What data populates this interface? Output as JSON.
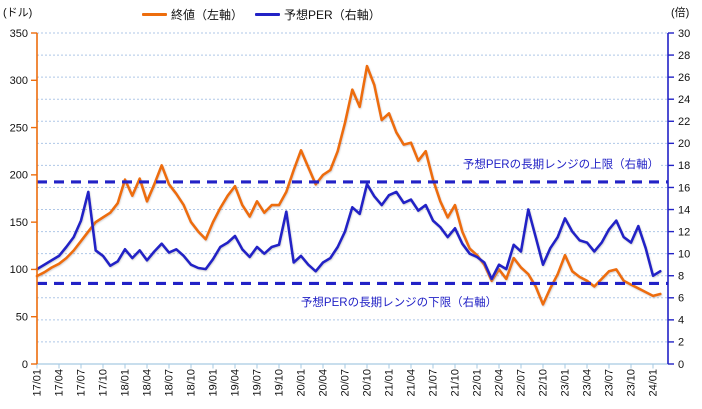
{
  "chart_data": {
    "type": "line",
    "title": "",
    "legend_position": "top",
    "grid": {
      "horizontal_every_right_units": 2,
      "style": "dotted",
      "color": "#AFC7E7"
    },
    "left_axis": {
      "unit": "(ドル)",
      "min": 0,
      "max": 350,
      "step": 50,
      "tick_labels": [
        "0",
        "50",
        "100",
        "150",
        "200",
        "250",
        "300",
        "350"
      ],
      "color": "#ED6D0D"
    },
    "right_axis": {
      "unit": "(倍)",
      "min": 0,
      "max": 30,
      "step": 2,
      "tick_labels": [
        "0",
        "2",
        "4",
        "6",
        "8",
        "10",
        "12",
        "14",
        "16",
        "18",
        "20",
        "22",
        "24",
        "26",
        "28",
        "30"
      ],
      "color": "#2222C6"
    },
    "x_tick_labels": [
      "17/01",
      "17/04",
      "17/07",
      "17/10",
      "18/01",
      "18/04",
      "18/07",
      "18/10",
      "19/01",
      "19/04",
      "19/07",
      "19/10",
      "20/01",
      "20/04",
      "20/07",
      "20/10",
      "21/01",
      "21/04",
      "21/07",
      "21/10",
      "22/01",
      "22/04",
      "22/07",
      "22/10",
      "23/01",
      "23/04",
      "23/07",
      "23/10",
      "24/01"
    ],
    "x": [
      "17/01",
      "17/02",
      "17/03",
      "17/04",
      "17/05",
      "17/06",
      "17/07",
      "17/08",
      "17/09",
      "17/10",
      "17/11",
      "17/12",
      "18/01",
      "18/02",
      "18/03",
      "18/04",
      "18/05",
      "18/06",
      "18/07",
      "18/08",
      "18/09",
      "18/10",
      "18/11",
      "18/12",
      "19/01",
      "19/02",
      "19/03",
      "19/04",
      "19/05",
      "19/06",
      "19/07",
      "19/08",
      "19/09",
      "19/10",
      "19/11",
      "19/12",
      "20/01",
      "20/02",
      "20/03",
      "20/04",
      "20/05",
      "20/06",
      "20/07",
      "20/08",
      "20/09",
      "20/10",
      "20/11",
      "20/12",
      "21/01",
      "21/02",
      "21/03",
      "21/04",
      "21/05",
      "21/06",
      "21/07",
      "21/08",
      "21/09",
      "21/10",
      "21/11",
      "21/12",
      "22/01",
      "22/02",
      "22/03",
      "22/04",
      "22/05",
      "22/06",
      "22/07",
      "22/08",
      "22/09",
      "22/10",
      "22/11",
      "22/12",
      "23/01",
      "23/02",
      "23/03",
      "23/04",
      "23/05",
      "23/06",
      "23/07",
      "23/08",
      "23/09",
      "23/10",
      "23/11",
      "23/12",
      "24/01",
      "24/02"
    ],
    "series": [
      {
        "name": "終値（左軸）",
        "axis": "left",
        "color": "#ED6D0D",
        "values": [
          93,
          97,
          102,
          106,
          112,
          120,
          130,
          140,
          150,
          155,
          160,
          170,
          195,
          178,
          196,
          172,
          190,
          210,
          190,
          180,
          168,
          150,
          140,
          132,
          150,
          165,
          178,
          188,
          168,
          156,
          172,
          160,
          168,
          168,
          182,
          205,
          226,
          208,
          190,
          200,
          205,
          225,
          255,
          290,
          272,
          315,
          295,
          258,
          265,
          245,
          232,
          234,
          215,
          225,
          195,
          172,
          155,
          168,
          140,
          122,
          115,
          105,
          88,
          100,
          90,
          112,
          102,
          95,
          82,
          63,
          80,
          95,
          115,
          98,
          92,
          88,
          82,
          90,
          98,
          100,
          88,
          84,
          80,
          76,
          72,
          74
        ]
      },
      {
        "name": "予想PER（右軸）",
        "axis": "right",
        "color": "#2222C6",
        "values": [
          8.6,
          9.0,
          9.4,
          9.8,
          10.6,
          11.5,
          13.0,
          15.6,
          10.3,
          9.8,
          8.9,
          9.3,
          10.4,
          9.6,
          10.3,
          9.4,
          10.2,
          10.9,
          10.1,
          10.4,
          9.8,
          9.0,
          8.7,
          8.6,
          9.5,
          10.6,
          11.0,
          11.6,
          10.4,
          9.7,
          10.6,
          10.0,
          10.6,
          10.8,
          13.8,
          9.2,
          9.8,
          9.0,
          8.4,
          9.2,
          9.6,
          10.6,
          12.0,
          14.2,
          13.6,
          16.3,
          15.2,
          14.4,
          15.3,
          15.6,
          14.6,
          14.9,
          13.9,
          14.4,
          13.0,
          12.4,
          11.5,
          12.3,
          10.9,
          10.0,
          9.7,
          9.2,
          7.7,
          9.0,
          8.6,
          10.8,
          10.2,
          14.0,
          11.5,
          9.0,
          10.5,
          11.5,
          13.2,
          12.0,
          11.2,
          11.0,
          10.2,
          11.0,
          12.2,
          13.0,
          11.5,
          11.0,
          12.5,
          10.5,
          8.0,
          8.4
        ]
      }
    ],
    "reference_lines": [
      {
        "label": "予想PERの長期レンジの上限（右軸）",
        "axis": "right",
        "value": 16.5,
        "style": "dashed",
        "color": "#2222C6"
      },
      {
        "label": "予想PERの長期レンジの下限（右軸）",
        "axis": "right",
        "value": 7.3,
        "style": "dashed",
        "color": "#2222C6"
      }
    ]
  }
}
